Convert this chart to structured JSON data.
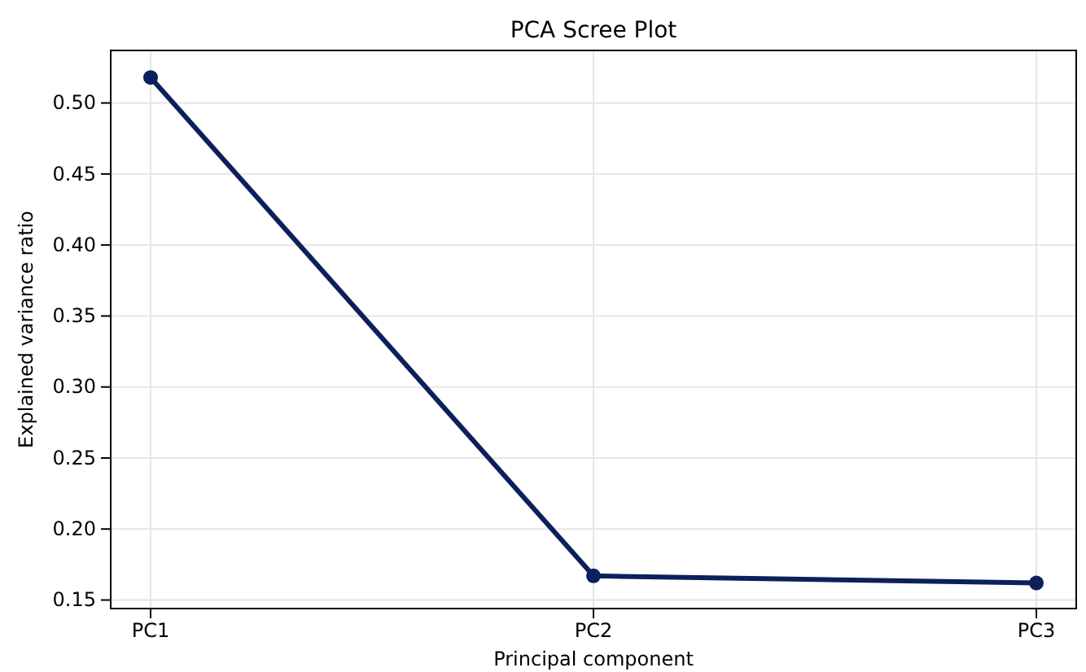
{
  "chart_data": {
    "type": "line",
    "title": "PCA Scree Plot",
    "xlabel": "Principal component",
    "ylabel": "Explained variance ratio",
    "categories": [
      "PC1",
      "PC2",
      "PC3"
    ],
    "series": [
      {
        "color": "#0d1f5c",
        "values": [
          0.518,
          0.167,
          0.162
        ]
      }
    ],
    "ylim": [
      0.144,
      0.537
    ],
    "yticks": [
      {
        "value": 0.15,
        "label": "0.15"
      },
      {
        "value": 0.2,
        "label": "0.20"
      },
      {
        "value": 0.25,
        "label": "0.25"
      },
      {
        "value": 0.3,
        "label": "0.30"
      },
      {
        "value": 0.35,
        "label": "0.35"
      },
      {
        "value": 0.4,
        "label": "0.40"
      },
      {
        "value": 0.45,
        "label": "0.45"
      },
      {
        "value": 0.5,
        "label": "0.50"
      }
    ],
    "grid": true,
    "marker": "circle",
    "line_style": "solid"
  }
}
